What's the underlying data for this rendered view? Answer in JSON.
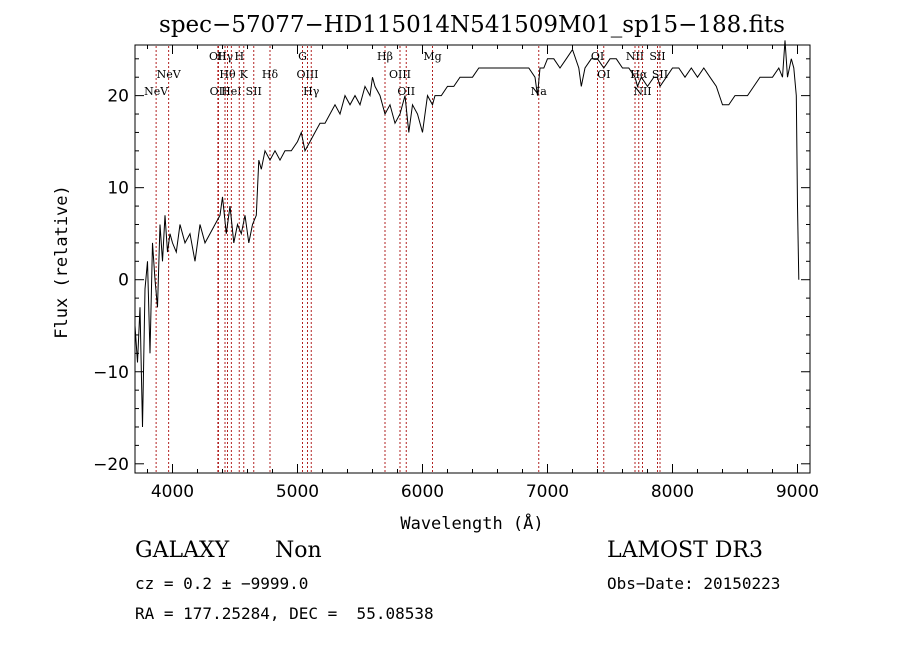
{
  "chart_data": {
    "type": "line",
    "title": "spec−57077−HD115014N541509M01_sp15−188.fits",
    "xlabel": "Wavelength (Å)",
    "ylabel": "Flux (relative)",
    "xlim": [
      3700,
      9100
    ],
    "ylim": [
      -21,
      25.5
    ],
    "xticks": [
      4000,
      5000,
      6000,
      7000,
      8000,
      9000
    ],
    "xtick_labels": [
      "4000",
      "5000",
      "6000",
      "7000",
      "8000",
      "9000"
    ],
    "yticks": [
      -20,
      -10,
      0,
      10,
      20
    ],
    "ytick_labels": [
      "−20",
      "−10",
      "0",
      "10",
      "20"
    ],
    "colors": {
      "spectrum": "#000000",
      "line_marker": "#b22222",
      "axes": "#000000"
    },
    "series": [
      {
        "name": "spectrum",
        "x": [
          3700,
          3720,
          3740,
          3760,
          3780,
          3800,
          3820,
          3840,
          3860,
          3880,
          3900,
          3920,
          3940,
          3960,
          3980,
          4000,
          4030,
          4060,
          4100,
          4140,
          4180,
          4220,
          4260,
          4300,
          4340,
          4380,
          4400,
          4430,
          4460,
          4490,
          4520,
          4550,
          4580,
          4610,
          4640,
          4670,
          4690,
          4710,
          4740,
          4780,
          4820,
          4860,
          4900,
          4950,
          5000,
          5030,
          5060,
          5100,
          5140,
          5180,
          5220,
          5260,
          5300,
          5340,
          5380,
          5420,
          5460,
          5500,
          5540,
          5580,
          5600,
          5620,
          5660,
          5700,
          5740,
          5780,
          5820,
          5860,
          5890,
          5920,
          5960,
          6000,
          6040,
          6080,
          6100,
          6150,
          6200,
          6250,
          6300,
          6350,
          6400,
          6450,
          6500,
          6550,
          6600,
          6650,
          6700,
          6750,
          6800,
          6850,
          6900,
          6920,
          6940,
          6970,
          7000,
          7050,
          7100,
          7150,
          7200,
          7250,
          7270,
          7300,
          7350,
          7400,
          7450,
          7500,
          7550,
          7600,
          7650,
          7700,
          7720,
          7750,
          7800,
          7850,
          7880,
          7900,
          7950,
          8000,
          8050,
          8100,
          8150,
          8200,
          8250,
          8300,
          8350,
          8400,
          8450,
          8500,
          8550,
          8600,
          8650,
          8700,
          8750,
          8800,
          8850,
          8880,
          8900,
          8920,
          8950,
          8970,
          8990,
          9000,
          9010
        ],
        "y": [
          -5,
          -9,
          -3,
          -16,
          -1,
          2,
          -8,
          4,
          0,
          -3,
          6,
          2,
          7,
          3,
          5,
          4,
          3,
          6,
          4,
          5,
          2,
          6,
          4,
          5,
          6,
          7,
          9,
          5,
          8,
          4,
          6,
          5,
          7,
          4,
          6,
          7,
          13,
          12,
          14,
          13,
          14,
          13,
          14,
          14,
          15,
          16,
          14,
          15,
          16,
          17,
          17,
          18,
          19,
          18,
          20,
          19,
          20,
          19,
          21,
          20,
          22,
          21,
          20,
          18,
          19,
          17,
          18,
          20,
          16,
          19,
          18,
          16,
          20,
          19,
          20,
          20,
          21,
          21,
          22,
          22,
          22,
          23,
          23,
          23,
          23,
          23,
          23,
          23,
          23,
          23,
          22,
          20,
          23,
          23,
          24,
          24,
          23,
          24,
          25,
          23,
          21,
          23,
          24,
          24,
          23,
          24,
          24,
          23,
          23,
          22,
          21,
          22,
          21,
          22,
          22,
          21,
          22,
          23,
          23,
          22,
          23,
          22,
          23,
          22,
          21,
          19,
          19,
          20,
          20,
          20,
          21,
          22,
          22,
          22,
          23,
          22,
          26,
          22,
          24,
          23,
          20,
          8,
          0
        ]
      }
    ],
    "line_markers": [
      {
        "wavelength": 3869,
        "label": "NeV",
        "row": 3
      },
      {
        "wavelength": 3969,
        "label": "NeV",
        "row": 2
      },
      {
        "wavelength": 4363,
        "label": "OII",
        "row": 1
      },
      {
        "wavelength": 4368,
        "label": "OII",
        "row": 3
      },
      {
        "wavelength": 4420,
        "label": "Hγ",
        "row": 1
      },
      {
        "wavelength": 4440,
        "label": "Hθ",
        "row": 2
      },
      {
        "wavelength": 4471,
        "label": "HeI",
        "row": 3
      },
      {
        "wavelength": 4534,
        "label": "H",
        "row": 1
      },
      {
        "wavelength": 4570,
        "label": "K",
        "row": 2
      },
      {
        "wavelength": 4650,
        "label": "SII",
        "row": 3
      },
      {
        "wavelength": 4780,
        "label": "Hδ",
        "row": 2
      },
      {
        "wavelength": 5040,
        "label": "G",
        "row": 1
      },
      {
        "wavelength": 5080,
        "label": "OIII",
        "row": 2
      },
      {
        "wavelength": 5110,
        "label": "Hγ",
        "row": 3
      },
      {
        "wavelength": 5700,
        "label": "Hβ",
        "row": 1
      },
      {
        "wavelength": 5820,
        "label": "OIII",
        "row": 2
      },
      {
        "wavelength": 5870,
        "label": "OII",
        "row": 3
      },
      {
        "wavelength": 6080,
        "label": "Mg",
        "row": 1
      },
      {
        "wavelength": 6930,
        "label": "Na",
        "row": 3
      },
      {
        "wavelength": 7400,
        "label": "OI",
        "row": 1
      },
      {
        "wavelength": 7450,
        "label": "OI",
        "row": 2
      },
      {
        "wavelength": 7700,
        "label": "NII",
        "row": 1
      },
      {
        "wavelength": 7730,
        "label": "Hα",
        "row": 2
      },
      {
        "wavelength": 7760,
        "label": "NII",
        "row": 3
      },
      {
        "wavelength": 7880,
        "label": "SII",
        "row": 1
      },
      {
        "wavelength": 7900,
        "label": "SII",
        "row": 2
      }
    ]
  },
  "info": {
    "object_class": "GALAXY",
    "subclass": "Non",
    "survey": "LAMOST DR3",
    "redshift": "cz = 0.2 ± −9999.0",
    "obs_date": "Obs−Date: 20150223",
    "coords": "RA = 177.25284, DEC =  55.08538"
  }
}
